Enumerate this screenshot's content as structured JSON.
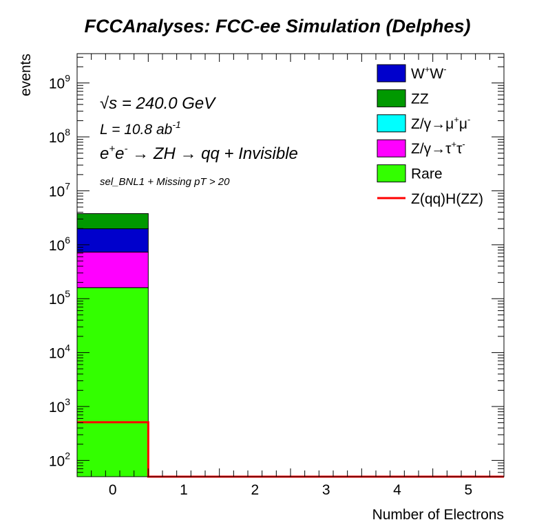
{
  "chart_data": {
    "type": "bar",
    "title": "FCCAnalyses: FCC-ee Simulation (Delphes)",
    "xlabel": "Number of Electrons",
    "ylabel": "events",
    "xlim": [
      -0.5,
      5.5
    ],
    "ylim": [
      50,
      3500000000
    ],
    "y_scale": "log",
    "x_ticks": [
      "0",
      "1",
      "2",
      "3",
      "4",
      "5"
    ],
    "y_ticks": [
      {
        "base": "10",
        "exp": "2",
        "value": 100
      },
      {
        "base": "10",
        "exp": "3",
        "value": 1000
      },
      {
        "base": "10",
        "exp": "4",
        "value": 10000
      },
      {
        "base": "10",
        "exp": "5",
        "value": 100000
      },
      {
        "base": "10",
        "exp": "6",
        "value": 1000000
      },
      {
        "base": "10",
        "exp": "7",
        "value": 10000000
      },
      {
        "base": "10",
        "exp": "8",
        "value": 100000000
      },
      {
        "base": "10",
        "exp": "9",
        "value": 1000000000
      }
    ],
    "grid": false,
    "legend_position": "top-right",
    "stacked": true,
    "bins": [
      {
        "x_low": -0.5,
        "x_high": 0.5,
        "label": "0"
      }
    ],
    "series": [
      {
        "key": "rare",
        "name": "Rare",
        "color": "#33ff00",
        "values": [
          160000
        ]
      },
      {
        "key": "tautau",
        "name": "Z/γ→τ⁺τ⁻",
        "color": "#ff00ff",
        "values": [
          570000
        ]
      },
      {
        "key": "mumu",
        "name": "Z/γ→μ⁺μ⁻",
        "color": "#00ffff",
        "values": [
          0
        ]
      },
      {
        "key": "ww",
        "name": "W⁺W⁻",
        "color": "#0000cc",
        "values": [
          1250000
        ]
      },
      {
        "key": "zz",
        "name": "ZZ",
        "color": "#009900",
        "values": [
          1800000
        ]
      }
    ],
    "signal": {
      "name": "Z(qq)H(ZZ)",
      "color": "#ff0000",
      "values": [
        510,
        0,
        0,
        0,
        0,
        0
      ]
    },
    "legend_order": [
      "ww",
      "zz",
      "mumu",
      "tautau",
      "rare",
      "signal"
    ],
    "legend_labels": [
      {
        "key": "ww",
        "base": "W",
        "sup1": "+",
        "mid": "W",
        "sup2": "-"
      },
      {
        "key": "zz",
        "base": "ZZ"
      },
      {
        "key": "mumu",
        "base": "Z/γ→μ",
        "sup1": "+",
        "mid": "μ",
        "sup2": "-"
      },
      {
        "key": "tautau",
        "base": "Z/γ→τ",
        "sup1": "+",
        "mid": "τ",
        "sup2": "-"
      },
      {
        "key": "rare",
        "base": "Rare"
      },
      {
        "key": "signal",
        "base": "Z(qq)H(ZZ)"
      }
    ],
    "annotations": {
      "sqrt_s": {
        "symbol": "√s",
        "text": " = 240.0 GeV"
      },
      "lumi": {
        "text": "L = 10.8 ab",
        "sup": "-1"
      },
      "process": {
        "p1": "e",
        "sup1": "+",
        "p2": "e",
        "sup2": "-",
        "rest": " → ZH → qq + Invisible"
      },
      "selection": "sel_BNL1 + Missing pT > 20"
    }
  }
}
